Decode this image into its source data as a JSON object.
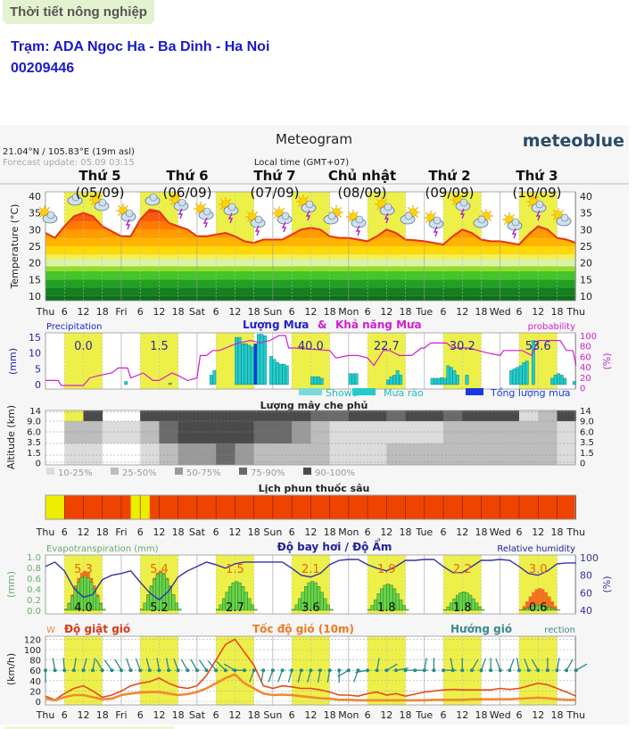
{
  "header": {
    "section_title": "Thời tiết nông nghiệp",
    "station_line": "Trạm: ADA Ngoc Ha - Ba Dinh - Ha Noi",
    "station_id": "00209446"
  },
  "meteogram": {
    "title": "Meteogram",
    "brand": "meteoblue",
    "coords": "21.04°N / 105.83°E (19m asl)",
    "forecast_update": "Forecast update: 05.09 03:15",
    "local_time": "Local time (GMT+07)",
    "days": [
      {
        "name": "Thứ 5",
        "date": "(05/09)"
      },
      {
        "name": "Thứ 6",
        "date": "(06/09)"
      },
      {
        "name": "Thứ 7",
        "date": "(07/09)"
      },
      {
        "name": "Chủ nhật",
        "date": "(08/09)"
      },
      {
        "name": "Thứ 2",
        "date": "(09/09)"
      },
      {
        "name": "Thứ 3",
        "date": "(10/09)"
      }
    ],
    "x_labels": [
      "Thu",
      "6",
      "12",
      "18",
      "Fri",
      "6",
      "12",
      "18",
      "Sat",
      "6",
      "12",
      "18",
      "Sun",
      "6",
      "12",
      "18",
      "Mon",
      "6",
      "12",
      "18",
      "Tue",
      "6",
      "12",
      "18",
      "Wed",
      "6",
      "12",
      "18",
      "Thu"
    ],
    "colors": {
      "daylight": "#eef04a",
      "temp_line": "#e83010",
      "rain": "#22cccc",
      "rain_total": "#1a3ae0",
      "probability": "#d020d0",
      "gust": "#e84a1a",
      "wind": "#f08a30",
      "direction": "#2a8a8a",
      "evap": "#66d44a",
      "evap_potential": "#f07020",
      "humidity": "#3434a8",
      "spray_ok": "#eeee00",
      "spray_no": "#ee4400"
    }
  },
  "chart_data": [
    {
      "type": "area",
      "panel": "temperature",
      "ylabel": "Temperature (°C)",
      "ylim": [
        10,
        40
      ],
      "yticks": [
        40,
        35,
        30,
        25,
        20,
        15,
        10
      ],
      "x_unit": "hours from Thu 00:00, step 3h",
      "values": [
        29,
        27.5,
        31,
        34,
        35,
        34,
        31,
        29.5,
        28,
        28,
        33,
        36,
        35.5,
        32,
        31,
        30,
        28,
        28,
        28.5,
        29,
        28,
        26.5,
        26,
        27,
        27,
        27,
        28.5,
        30,
        30.5,
        30,
        28,
        27.5,
        27.5,
        27,
        26.5,
        28,
        30,
        29,
        27,
        26.8,
        26.5,
        26,
        25.5,
        28,
        30,
        29,
        27,
        26.5,
        26.5,
        26,
        25.5,
        28.5,
        31,
        30,
        27.5,
        27,
        26
      ],
      "weather_icons": [
        "sun-cloud",
        "cloud",
        "sun-cloud",
        "sun-cloud-thunder",
        "cloud",
        "sun-cloud-thunder",
        "sun-cloud-thunder",
        "sun-cloud-thunder",
        "sun-cloud-thunder",
        "sun-cloud-thunder",
        "sun-cloud-thunder",
        "cloud-sun",
        "sun-cloud-thunder",
        "sun-cloud-thunder",
        "cloud-sun",
        "sun-cloud-thunder",
        "sun-cloud-thunder",
        "cloud-sun",
        "sun-cloud-thunder",
        "sun-cloud-thunder",
        "sun-cloud"
      ]
    },
    {
      "type": "bar",
      "panel": "precipitation",
      "title": "Lượng Mưa",
      "title_amp": "&",
      "title2": "Khả năng Mưa",
      "left_label": "Precipitation",
      "right_label": "probability",
      "ylabel": "(mm)",
      "y2label": "(%)",
      "ylim": [
        0,
        15
      ],
      "yticks": [
        15,
        10,
        5,
        0
      ],
      "y2ticks": [
        100,
        80,
        60,
        40,
        20,
        0
      ],
      "daily_totals": [
        {
          "hour": 12,
          "value": "0.0"
        },
        {
          "hour": 36,
          "value": "1.5"
        },
        {
          "hour": 84,
          "value": "40.0"
        },
        {
          "hour": 108,
          "value": "22.7"
        },
        {
          "hour": 132,
          "value": "30.2"
        },
        {
          "hour": 156,
          "value": "53.6"
        }
      ],
      "bars": [
        [
          25,
          1
        ],
        [
          39,
          0.5
        ],
        [
          52,
          3
        ],
        [
          53,
          4.5
        ],
        [
          60,
          15
        ],
        [
          61,
          15
        ],
        [
          62,
          13
        ],
        [
          63,
          13
        ],
        [
          64,
          12.5
        ],
        [
          65,
          12
        ],
        [
          66,
          13,
          "total"
        ],
        [
          67,
          16
        ],
        [
          68,
          16
        ],
        [
          69,
          15.5
        ],
        [
          71,
          9
        ],
        [
          72,
          8
        ],
        [
          73,
          7
        ],
        [
          74,
          6.5
        ],
        [
          75,
          6.5
        ],
        [
          76,
          6
        ],
        [
          84,
          2.5
        ],
        [
          85,
          2.5
        ],
        [
          86,
          2.5
        ],
        [
          87,
          2
        ],
        [
          96,
          3.5
        ],
        [
          97,
          3.5
        ],
        [
          98,
          3.5
        ],
        [
          108,
          1.5
        ],
        [
          109,
          2.5
        ],
        [
          110,
          3
        ],
        [
          111,
          4.5
        ],
        [
          112,
          3
        ],
        [
          122,
          2
        ],
        [
          123,
          2
        ],
        [
          124,
          2
        ],
        [
          125,
          2.2
        ],
        [
          126,
          2
        ],
        [
          127,
          6
        ],
        [
          128,
          5.5
        ],
        [
          129,
          4.5
        ],
        [
          130,
          3
        ],
        [
          133,
          3
        ],
        [
          147,
          4.5
        ],
        [
          148,
          5
        ],
        [
          149,
          5.5
        ],
        [
          150,
          6
        ],
        [
          151,
          7
        ],
        [
          152,
          7.5
        ],
        [
          154,
          14
        ],
        [
          160,
          2
        ],
        [
          161,
          3
        ],
        [
          162,
          3.5
        ],
        [
          163,
          3
        ],
        [
          164,
          2
        ],
        [
          167,
          1
        ]
      ],
      "probability": [
        [
          0,
          10
        ],
        [
          4,
          10
        ],
        [
          5,
          0
        ],
        [
          12,
          0
        ],
        [
          14,
          15
        ],
        [
          17,
          20
        ],
        [
          21,
          25
        ],
        [
          23,
          35
        ],
        [
          26,
          35
        ],
        [
          27,
          15
        ],
        [
          31,
          25
        ],
        [
          34,
          10
        ],
        [
          36,
          10
        ],
        [
          40,
          25
        ],
        [
          42,
          20
        ],
        [
          45,
          10
        ],
        [
          48,
          15
        ],
        [
          49,
          60
        ],
        [
          51,
          60
        ],
        [
          53,
          70
        ],
        [
          55,
          70
        ],
        [
          59,
          80
        ],
        [
          61,
          85
        ],
        [
          65,
          90
        ],
        [
          68,
          85
        ],
        [
          71,
          90
        ],
        [
          74,
          100
        ],
        [
          76,
          100
        ],
        [
          77,
          75
        ],
        [
          79,
          75
        ],
        [
          90,
          70
        ],
        [
          92,
          55
        ],
        [
          96,
          60
        ],
        [
          99,
          60
        ],
        [
          102,
          55
        ],
        [
          104,
          40
        ],
        [
          107,
          70
        ],
        [
          109,
          70
        ],
        [
          112,
          60
        ],
        [
          116,
          60
        ],
        [
          119,
          75
        ],
        [
          120,
          75
        ],
        [
          122,
          85
        ],
        [
          127,
          85
        ],
        [
          129,
          75
        ],
        [
          134,
          75
        ],
        [
          137,
          70
        ],
        [
          140,
          65
        ],
        [
          144,
          60
        ],
        [
          145,
          70
        ],
        [
          151,
          70
        ],
        [
          154,
          60
        ],
        [
          156,
          90
        ],
        [
          163,
          90
        ],
        [
          165,
          70
        ],
        [
          167,
          70
        ],
        [
          168,
          40
        ]
      ],
      "legend": [
        {
          "label": "Showe",
          "color": "#7adada"
        },
        {
          "label": "Mưa rào",
          "color": "#22cccc"
        },
        {
          "label": "Tổng lượng mưa",
          "color": "#1a3ae0"
        }
      ]
    },
    {
      "type": "heatmap",
      "panel": "cloud_cover",
      "title": "Lượng mây che phủ",
      "ylabel": "Altitude (km)",
      "yticks": [
        "14",
        "9.0",
        "6.0",
        "3.5",
        "1.5",
        "0"
      ],
      "x_unit": "6h columns, layers [high, mid, low], class 0-5",
      "cells": [
        [
          0,
          0,
          0
        ],
        [
          0,
          2,
          1
        ],
        [
          5,
          2,
          1
        ],
        [
          0,
          1,
          0
        ],
        [
          0,
          1,
          0
        ],
        [
          5,
          2,
          1
        ],
        [
          5,
          4,
          2
        ],
        [
          5,
          5,
          3
        ],
        [
          5,
          5,
          3
        ],
        [
          5,
          5,
          4
        ],
        [
          5,
          5,
          3
        ],
        [
          5,
          4,
          2
        ],
        [
          5,
          4,
          2
        ],
        [
          5,
          3,
          2
        ],
        [
          4,
          2,
          2
        ],
        [
          4,
          1,
          1
        ],
        [
          5,
          1,
          1
        ],
        [
          5,
          1,
          1
        ],
        [
          4,
          1,
          2
        ],
        [
          5,
          1,
          2
        ],
        [
          5,
          1,
          2
        ],
        [
          4,
          2,
          2
        ],
        [
          5,
          2,
          2
        ],
        [
          5,
          2,
          2
        ],
        [
          5,
          2,
          2
        ],
        [
          1,
          2,
          2
        ],
        [
          2,
          2,
          2
        ],
        [
          5,
          1,
          1
        ]
      ],
      "legend": [
        {
          "label": "10-25%",
          "color": "#dcdcdc"
        },
        {
          "label": "25-50%",
          "color": "#bdbdbd"
        },
        {
          "label": "50-75%",
          "color": "#9a9a9a"
        },
        {
          "label": "75-90%",
          "color": "#6a6a6a"
        },
        {
          "label": "90-100%",
          "color": "#4a4a4a"
        }
      ]
    },
    {
      "type": "table",
      "panel": "spray_schedule",
      "title": "Lịch phun thuốc sâu",
      "x_unit": "3h cells, 1 = suitable (yellow), 0 = not suitable (red)",
      "cells": [
        1,
        1,
        0,
        0,
        0,
        0,
        0,
        0,
        0,
        1,
        1,
        0,
        0,
        0,
        0,
        0,
        0,
        0,
        0,
        0,
        0,
        0,
        0,
        0,
        0,
        0,
        0,
        0,
        0,
        0,
        0,
        0,
        0,
        0,
        0,
        0,
        0,
        0,
        0,
        0,
        0,
        0,
        0,
        0,
        0,
        0,
        0,
        0,
        0,
        0,
        0,
        0,
        0,
        0,
        0,
        0
      ]
    },
    {
      "type": "bar",
      "panel": "evapotranspiration",
      "title": "Độ bay hơi / Độ Ẩm",
      "left_label": "Evapotranspiration (mm)",
      "right_label": "Relative humidity",
      "ylabel": "(mm)",
      "y2label": "(%)",
      "ylim": [
        0,
        1.0
      ],
      "yticks": [
        "1.0",
        "0.8",
        "0.6",
        "0.4",
        "0.2",
        "0.0"
      ],
      "y2ticks": [
        100,
        80,
        60,
        40
      ],
      "daily_evap": [
        "4.0",
        "5.2",
        "2.7",
        "3.6",
        "1.8",
        "1.8",
        "0.6"
      ],
      "daily_potential": [
        "5.3",
        "5.4",
        "1.5",
        "2.1",
        "1.9",
        "2.2",
        "3.0"
      ],
      "evap_peaks": [
        0.65,
        0.72,
        0.55,
        0.55,
        0.5,
        0.35,
        0.1
      ],
      "potential_peaks": [
        0.75,
        0.75,
        0.1,
        0.1,
        0.3,
        0.35,
        0.42
      ],
      "humidity": [
        90,
        95,
        85,
        65,
        55,
        58,
        75,
        80,
        82,
        85,
        72,
        60,
        52,
        62,
        78,
        85,
        90,
        95,
        92,
        88,
        93,
        95,
        95,
        95,
        95,
        95,
        88,
        80,
        78,
        82,
        92,
        97,
        98,
        98,
        92,
        88,
        85,
        90,
        97,
        97,
        98,
        98,
        90,
        83,
        83,
        90,
        97,
        97,
        98,
        97,
        90,
        82,
        80,
        85,
        93,
        94,
        94
      ]
    },
    {
      "type": "line",
      "panel": "wind",
      "gust_label": "Độ giật gió",
      "wind_label": "Tốc độ gió (10m)",
      "direction_label": "Hướng gió",
      "left_cut_label": "W",
      "right_cut_label": "rection",
      "ylabel": "(km/h)",
      "ylim": [
        0,
        120
      ],
      "yticks": [
        120,
        100,
        80,
        60,
        40,
        20,
        0
      ],
      "gust": [
        10,
        3,
        15,
        25,
        30,
        20,
        8,
        12,
        20,
        30,
        35,
        38,
        45,
        35,
        28,
        25,
        30,
        50,
        80,
        110,
        120,
        95,
        70,
        30,
        25,
        30,
        28,
        25,
        25,
        22,
        18,
        12,
        12,
        10,
        15,
        18,
        12,
        15,
        10,
        14,
        18,
        20,
        22,
        23,
        22,
        22,
        22,
        22,
        25,
        23,
        25,
        30,
        35,
        32,
        25,
        18,
        10
      ],
      "wind_speed": [
        5,
        2,
        8,
        12,
        12,
        8,
        4,
        5,
        12,
        15,
        17,
        18,
        18,
        15,
        12,
        14,
        18,
        25,
        35,
        45,
        52,
        35,
        25,
        15,
        12,
        13,
        12,
        10,
        8,
        6,
        5,
        3,
        3,
        2,
        2,
        2,
        2,
        2,
        2,
        2,
        2,
        3,
        3,
        3,
        3,
        4,
        4,
        4,
        4,
        4,
        5,
        6,
        7,
        6,
        4,
        3,
        3
      ],
      "direction_deg": [
        180,
        -10,
        -5,
        10,
        15,
        10,
        -30,
        -35,
        -30,
        -20,
        -20,
        -15,
        -10,
        -10,
        -20,
        -30,
        -30,
        -35,
        -40,
        -45,
        -60,
        -90,
        200,
        190,
        200,
        200,
        195,
        195,
        195,
        190,
        190,
        180,
        240,
        200,
        260,
        10,
        60,
        80,
        90,
        90,
        10,
        0,
        90,
        -10,
        0,
        30,
        20,
        0,
        -20,
        20,
        -10,
        -20,
        -30,
        0,
        10,
        30,
        60
      ]
    }
  ]
}
